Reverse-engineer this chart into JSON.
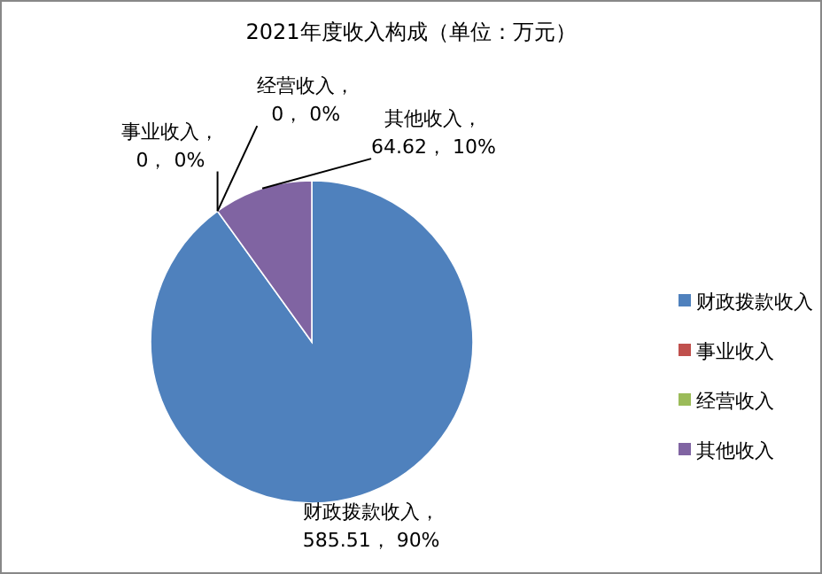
{
  "chart_data": {
    "type": "pie",
    "title": "2021年度收入构成（单位：万元）",
    "categories": [
      "财政拨款收入",
      "事业收入",
      "经营收入",
      "其他收入"
    ],
    "values": [
      585.51,
      0,
      0,
      64.62
    ],
    "value_labels": [
      "， 585.51， 90%",
      "， 0， 0%",
      "， 0， 0%",
      "， 64.62， 10%"
    ],
    "colors": [
      "#4f81bd",
      "#c0504d",
      "#9bbb59",
      "#8064a2"
    ],
    "legend": "right"
  }
}
